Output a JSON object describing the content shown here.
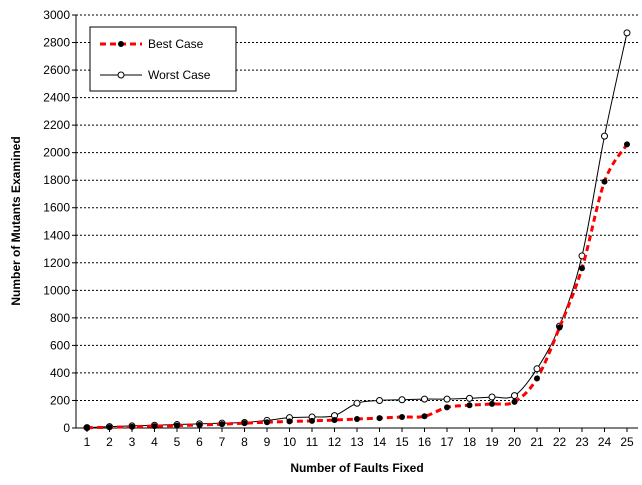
{
  "chart_data": {
    "type": "line",
    "title": "",
    "xlabel": "Number of Faults Fixed",
    "ylabel": "Number of Mutants Examined",
    "ylim": [
      0,
      3000
    ],
    "yticks": [
      0,
      200,
      400,
      600,
      800,
      1000,
      1200,
      1400,
      1600,
      1800,
      2000,
      2200,
      2400,
      2600,
      2800,
      3000
    ],
    "grid": "horizontal dotted",
    "legend": "top-left",
    "x": [
      1,
      2,
      3,
      4,
      5,
      6,
      7,
      8,
      9,
      10,
      11,
      12,
      13,
      14,
      15,
      16,
      17,
      18,
      19,
      20,
      21,
      22,
      23,
      24,
      25
    ],
    "series": [
      {
        "name": "Best Case",
        "style": "dashed",
        "color": "#ff0000",
        "marker": "filled-circle",
        "values": [
          2,
          5,
          9,
          14,
          18,
          22,
          28,
          35,
          42,
          48,
          52,
          58,
          65,
          72,
          80,
          85,
          150,
          165,
          175,
          190,
          360,
          730,
          1160,
          1790,
          2060
        ]
      },
      {
        "name": "Worst Case",
        "style": "solid",
        "color": "#000000",
        "marker": "open-circle",
        "values": [
          3,
          10,
          15,
          20,
          25,
          30,
          35,
          40,
          55,
          75,
          80,
          90,
          180,
          200,
          205,
          210,
          210,
          215,
          225,
          235,
          430,
          740,
          1250,
          2120,
          2870
        ]
      }
    ]
  }
}
